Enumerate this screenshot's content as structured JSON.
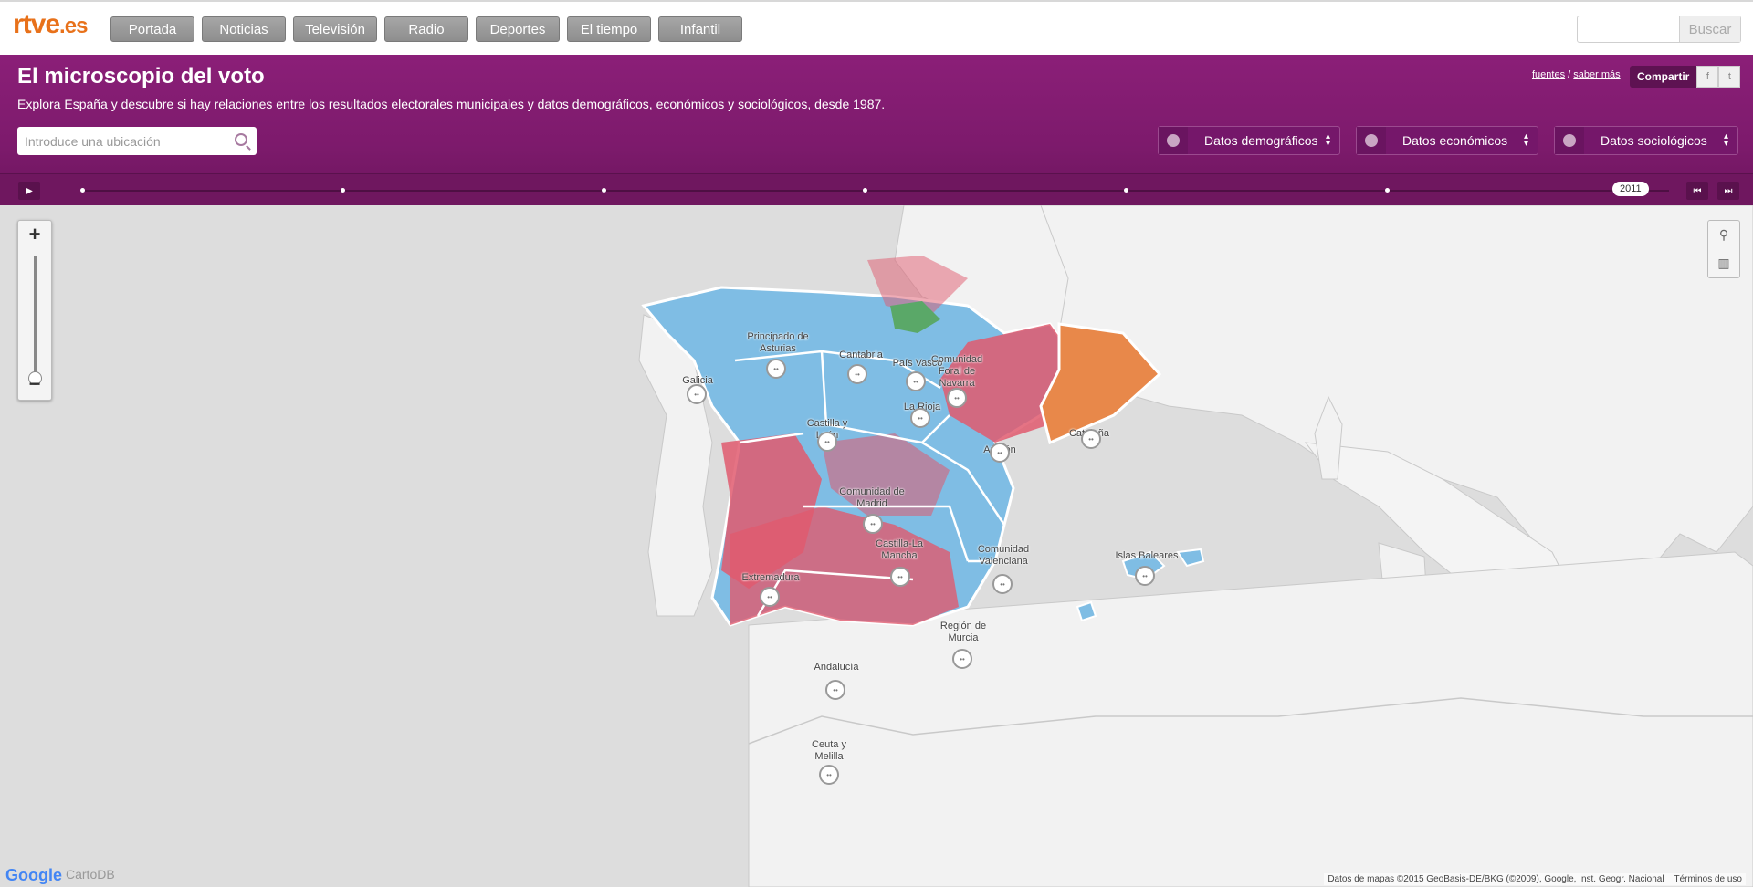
{
  "top": {
    "logo_main": "rtve",
    "logo_tld": ".es",
    "nav": [
      "Portada",
      "Noticias",
      "Televisión",
      "Radio",
      "Deportes",
      "El tiempo",
      "Infantil"
    ],
    "search_button": "Buscar"
  },
  "header": {
    "title": "El microscopio del voto",
    "subtitle": "Explora España y descubre si hay relaciones entre los resultados electorales municipales y datos demográficos, económicos y sociológicos, desde 1987.",
    "link_sources": "fuentes",
    "link_sep": "/",
    "link_more": "saber más",
    "share": "Compartir",
    "share_facebook": "f",
    "share_twitter": "t",
    "location_placeholder": "Introduce una ubicación",
    "dropdowns": [
      "Datos demográficos",
      "Datos económicos",
      "Datos sociológicos"
    ]
  },
  "timeline": {
    "year": "2011"
  },
  "map": {
    "regions": [
      "Principado de Asturias",
      "Cantabria",
      "País Vasco",
      "Comunidad Foral de Navarra",
      "Galicia",
      "La Rioja",
      "Castilla y León",
      "Aragón",
      "Cataluña",
      "Comunidad de Madrid",
      "Castilla-La Mancha",
      "Comunidad Valenciana",
      "Islas Baleares",
      "Extremadura",
      "Región de Murcia",
      "Andalucía",
      "Ceuta y Melilla"
    ],
    "zoom_in": "+",
    "zoom_out": "−",
    "attribution": "Datos de mapas ©2015 GeoBasis-DE/BKG (©2009), Google, Inst. Geogr. Nacional",
    "terms": "Términos de uso",
    "google_logo": "Google",
    "cartodb_logo": "CartoDB",
    "colors": {
      "pp": "#7fbde4",
      "psoe": "#e05a6e",
      "ciu": "#e8884a",
      "other": "#5aa868",
      "land": "#f2f2f2",
      "sea": "#dddddd"
    }
  }
}
